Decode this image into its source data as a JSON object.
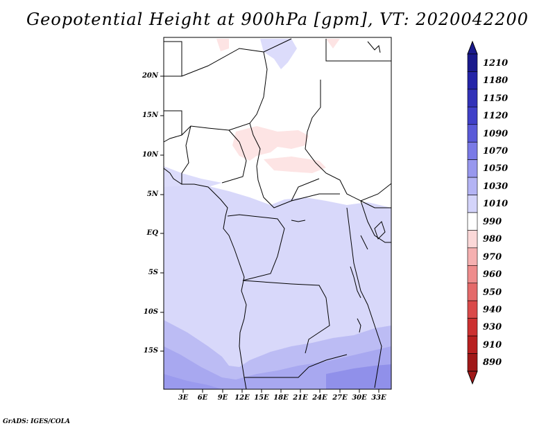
{
  "title": "Geopotential Height at 900hPa [gpm], VT: 2020042200",
  "footer": "GrADS: IGES/COLA",
  "map": {
    "lat_labels": [
      "20N",
      "15N",
      "10N",
      "5N",
      "EQ",
      "5S",
      "10S",
      "15S"
    ],
    "lon_labels": [
      "3E",
      "6E",
      "9E",
      "12E",
      "15E",
      "18E",
      "21E",
      "24E",
      "27E",
      "30E",
      "33E"
    ]
  },
  "colorbar": {
    "levels": [
      "1210",
      "1180",
      "1150",
      "1120",
      "1090",
      "1070",
      "1050",
      "1030",
      "1010",
      "990",
      "980",
      "970",
      "960",
      "950",
      "940",
      "930",
      "910",
      "890"
    ],
    "colors": [
      "#1a1a8c",
      "#2424a8",
      "#3232b8",
      "#4040c8",
      "#5a5ad8",
      "#7a7ae6",
      "#9898ee",
      "#b4b4f4",
      "#d4d4fa",
      "#ffffff",
      "#fbd8d8",
      "#f5b0b0",
      "#ee8c8c",
      "#e46a6a",
      "#da4a4a",
      "#cc3030",
      "#b82020",
      "#a01818"
    ]
  }
}
